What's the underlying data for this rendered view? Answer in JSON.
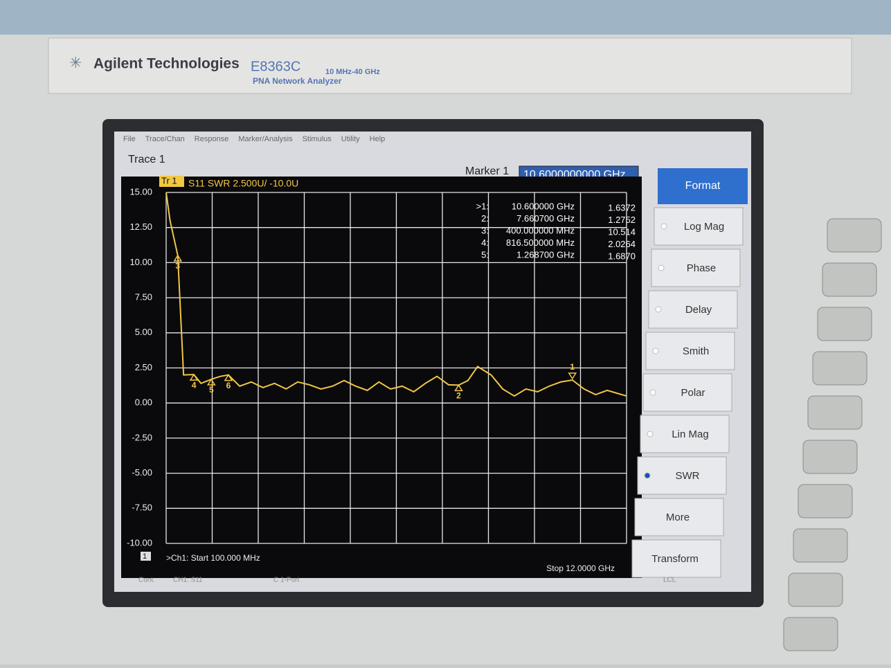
{
  "header": {
    "brand": "Agilent Technologies",
    "model": "E8363C",
    "range": "10 MHz-40 GHz",
    "product": "PNA Network Analyzer"
  },
  "menu": [
    "File",
    "Trace/Chan",
    "Response",
    "Marker/Analysis",
    "Stimulus",
    "Utility",
    "Help"
  ],
  "window_title": "Trace 1",
  "marker_entry": {
    "label": "Marker 1",
    "value": "10.6000000000 GHz"
  },
  "chart_data": {
    "type": "line",
    "trace_tag": "Tr 1",
    "title": "S11 SWR 2.500U/ -10.0U",
    "x": [
      0.1,
      0.2,
      0.4,
      0.55,
      0.8165,
      1.0,
      1.2687,
      1.5,
      1.71,
      2.0,
      2.3,
      2.6,
      2.9,
      3.2,
      3.5,
      3.8,
      4.1,
      4.4,
      4.7,
      5.0,
      5.3,
      5.6,
      5.9,
      6.2,
      6.5,
      6.8,
      7.1,
      7.4,
      7.66,
      7.9,
      8.15,
      8.5,
      8.8,
      9.1,
      9.4,
      9.7,
      10.0,
      10.3,
      10.6,
      10.9,
      11.2,
      11.5,
      12.0
    ],
    "values": [
      15,
      13,
      10.514,
      2.0,
      2.0264,
      1.4,
      1.687,
      1.9,
      2.0,
      1.2,
      1.5,
      1.1,
      1.4,
      1.0,
      1.5,
      1.3,
      1.0,
      1.2,
      1.6,
      1.2,
      0.9,
      1.5,
      1.0,
      1.2,
      0.8,
      1.4,
      1.9,
      1.3,
      1.2752,
      1.6,
      2.6,
      2.0,
      1.0,
      0.5,
      1.0,
      0.8,
      1.2,
      1.5,
      1.6372,
      1.0,
      0.6,
      0.9,
      0.5
    ],
    "color": "#f2c744",
    "xlim": [
      0.1,
      12
    ],
    "ylim": [
      -10,
      15
    ],
    "yticks": [
      {
        "value": 15,
        "label": "15.00"
      },
      {
        "value": 12.5,
        "label": "12.50"
      },
      {
        "value": 10,
        "label": "10.00"
      },
      {
        "value": 7.5,
        "label": "7.50"
      },
      {
        "value": 5,
        "label": "5.00"
      },
      {
        "value": 2.5,
        "label": "2.50"
      },
      {
        "value": 0,
        "label": "0.00"
      },
      {
        "value": -2.5,
        "label": "-2.50"
      },
      {
        "value": -5,
        "label": "-5.00"
      },
      {
        "value": -7.5,
        "label": "-7.50"
      },
      {
        "value": -10,
        "label": "-10.00"
      }
    ],
    "grid": true,
    "start_label": ">Ch1: Start 100.000 MHz",
    "stop_label": "Stop 12.0000 GHz",
    "channel": "1",
    "markers": [
      {
        "label": "1",
        "x": 10.6,
        "y": 1.6372,
        "id": ">1:",
        "x_label": "10.600000 GHz",
        "y_label": "1.6372"
      },
      {
        "label": "2",
        "x": 7.6607,
        "y": 1.2752,
        "id": "2:",
        "x_label": "7.660700 GHz",
        "y_label": "1.2752"
      },
      {
        "label": "3",
        "x": 0.4,
        "y": 10.514,
        "id": "3:",
        "x_label": "400.000000 MHz",
        "y_label": "10.514"
      },
      {
        "label": "4",
        "x": 0.8165,
        "y": 2.0264,
        "id": "4:",
        "x_label": "816.500000 MHz",
        "y_label": "2.0264"
      },
      {
        "label": "5",
        "x": 1.2687,
        "y": 1.687,
        "id": "5:",
        "x_label": "1.268700 GHz",
        "y_label": "1.6870"
      },
      {
        "label": "6",
        "x": 1.71,
        "y": 2.0
      }
    ]
  },
  "softkeys": {
    "header": "Format",
    "items": [
      "Log Mag",
      "Phase",
      "Delay",
      "Smith",
      "Polar",
      "Lin Mag",
      "SWR",
      "More",
      "Transform"
    ],
    "selected": "SWR"
  },
  "status_bar": [
    "Cont.",
    "CH1: S11",
    "C 1-Port",
    "LCL"
  ]
}
